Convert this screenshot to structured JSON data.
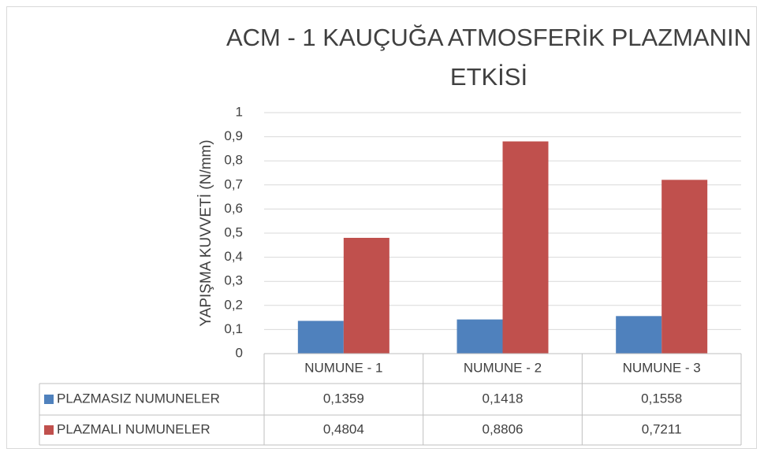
{
  "chart_data": {
    "type": "bar",
    "title": "ACM - 1 KAUÇUĞA ATMOSFERİK PLAZMANIN ETKİSİ",
    "y_label": "YAPIŞMA KUVVETİ (N/mm)",
    "categories": [
      "NUMUNE - 1",
      "NUMUNE - 2",
      "NUMUNE - 3"
    ],
    "series": [
      {
        "name": "PLAZMASIZ NUMUNELER",
        "color": "#4f81bd",
        "values": [
          0.1359,
          0.1418,
          0.1558
        ],
        "value_labels": [
          "0,1359",
          "0,1418",
          "0,1558"
        ]
      },
      {
        "name": "PLAZMALI NUMUNELER",
        "color": "#c0504d",
        "values": [
          0.4804,
          0.8806,
          0.7211
        ],
        "value_labels": [
          "0,4804",
          "0,8806",
          "0,7211"
        ]
      }
    ],
    "ylim": [
      0,
      1
    ],
    "yticks": [
      0,
      {
        "value": 0.1,
        "label": "0,1"
      },
      {
        "value": 0.2,
        "label": "0,2"
      },
      {
        "value": 0.3,
        "label": "0,3"
      },
      {
        "value": 0.4,
        "label": "0,4"
      },
      {
        "value": 0.5,
        "label": "0,5"
      },
      {
        "value": 0.6,
        "label": "0,6"
      },
      {
        "value": 0.7,
        "label": "0,7"
      },
      {
        "value": 0.8,
        "label": "0,8"
      },
      {
        "value": 0.9,
        "label": "0,9"
      },
      1
    ],
    "grid": true,
    "data_table": true
  }
}
